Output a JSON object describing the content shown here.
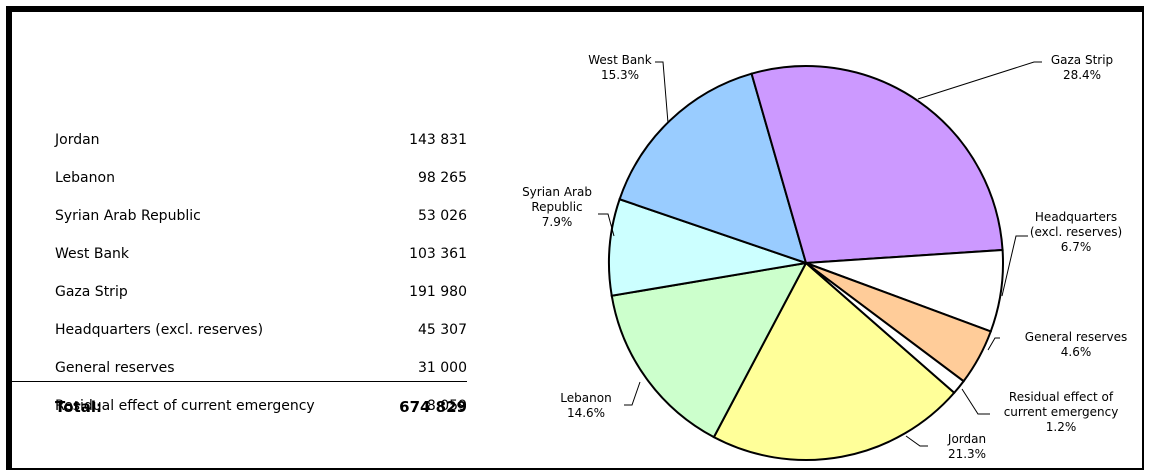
{
  "table": {
    "rows": [
      [
        "Jordan",
        "143 831"
      ],
      [
        "Lebanon",
        "98 265"
      ],
      [
        "Syrian Arab Republic",
        "53 026"
      ],
      [
        "West Bank",
        "103 361"
      ],
      [
        "Gaza Strip",
        "191 980"
      ],
      [
        "Headquarters (excl. reserves)",
        "45 307"
      ],
      [
        "General reserves",
        "31 000"
      ],
      [
        "Residual effect of current emergency",
        "8 059"
      ]
    ],
    "total": [
      "Total:",
      "674 829"
    ]
  },
  "chart_data": {
    "type": "pie",
    "categories": [
      "Jordan",
      "Lebanon",
      "Syrian Arab Republic",
      "West Bank",
      "Gaza Strip",
      "Headquarters (excl. reserves)",
      "General reserves",
      "Residual effect of current emergency"
    ],
    "values": [
      21.3,
      14.6,
      7.9,
      15.3,
      28.4,
      6.7,
      4.6,
      1.2
    ],
    "value_labels": [
      "21.3%",
      "14.6%",
      "7.9%",
      "15.3%",
      "28.4%",
      "6.7%",
      "4.6%",
      "1.2%"
    ],
    "colors": [
      "#ffff99",
      "#ccffcc",
      "#ccffff",
      "#99ccff",
      "#cc99ff",
      "#ffffff",
      "#ffcc99",
      "#ffffff"
    ]
  }
}
